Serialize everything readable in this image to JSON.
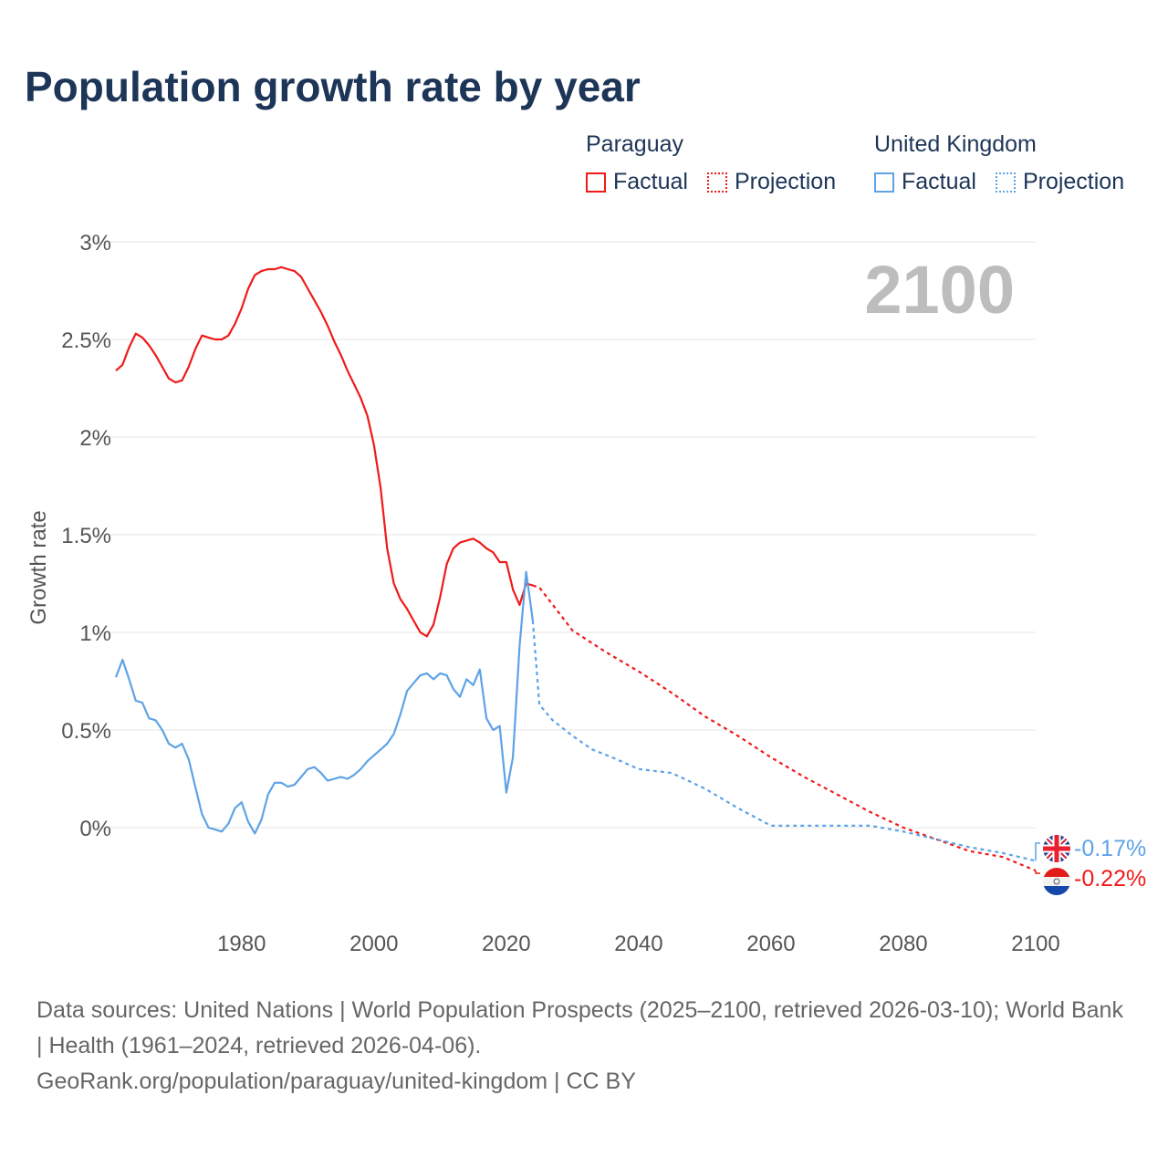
{
  "title": "Population growth rate by year",
  "legend": {
    "groups": [
      {
        "country": "Paraguay",
        "factual": "Factual",
        "projection": "Projection",
        "color": "#f01a1a"
      },
      {
        "country": "United Kingdom",
        "factual": "Factual",
        "projection": "Projection",
        "color": "#5ea3e6"
      }
    ]
  },
  "year_display": "2100",
  "footer": {
    "sources": "Data sources: United Nations | World Population Prospects (2025–2100, retrieved 2026-03-10); World Bank | Health (1961–2024, retrieved 2026-04-06).",
    "credit": "GeoRank.org/population/paraguay/united-kingdom | CC BY"
  },
  "chart_data": {
    "type": "line",
    "title": "Population growth rate by year",
    "xlabel": "",
    "ylabel": "Growth rate",
    "xlim": [
      1961,
      2100
    ],
    "ylim": [
      -0.45,
      3.0
    ],
    "yticks": [
      0,
      0.5,
      1,
      1.5,
      2,
      2.5,
      3
    ],
    "ytick_labels": [
      "0%",
      "0.5%",
      "1%",
      "1.5%",
      "2%",
      "2.5%",
      "3%"
    ],
    "xticks": [
      1980,
      2000,
      2020,
      2040,
      2060,
      2080,
      2100
    ],
    "xtick_labels": [
      "1980",
      "2000",
      "2020",
      "2040",
      "2060",
      "2080",
      "2100"
    ],
    "grid": true,
    "legend_position": "top-right",
    "series": [
      {
        "name": "Paraguay",
        "kind": "Factual",
        "color": "#f01a1a",
        "start_year": 1961,
        "values": [
          2.34,
          2.37,
          2.46,
          2.53,
          2.51,
          2.47,
          2.42,
          2.36,
          2.3,
          2.28,
          2.29,
          2.36,
          2.45,
          2.52,
          2.51,
          2.5,
          2.5,
          2.52,
          2.58,
          2.66,
          2.76,
          2.83,
          2.85,
          2.86,
          2.86,
          2.87,
          2.86,
          2.85,
          2.82,
          2.76,
          2.7,
          2.64,
          2.57,
          2.49,
          2.42,
          2.34,
          2.27,
          2.2,
          2.11,
          1.96,
          1.74,
          1.43,
          1.25,
          1.17,
          1.12,
          1.06,
          1.0,
          0.98,
          1.04,
          1.18,
          1.35,
          1.43,
          1.46,
          1.47,
          1.48,
          1.46,
          1.43,
          1.41,
          1.36,
          1.36,
          1.22,
          1.14,
          1.25,
          1.24
        ]
      },
      {
        "name": "Paraguay",
        "kind": "Projection",
        "color": "#f01a1a",
        "x": [
          2024,
          2025,
          2030,
          2035,
          2040,
          2045,
          2050,
          2055,
          2060,
          2065,
          2070,
          2075,
          2080,
          2085,
          2090,
          2095,
          2100
        ],
        "values": [
          1.24,
          1.23,
          1.01,
          0.9,
          0.8,
          0.69,
          0.57,
          0.47,
          0.36,
          0.26,
          0.17,
          0.08,
          0.0,
          -0.06,
          -0.12,
          -0.15,
          -0.22
        ]
      },
      {
        "name": "United Kingdom",
        "kind": "Factual",
        "color": "#5ea3e6",
        "start_year": 1961,
        "values": [
          0.77,
          0.86,
          0.76,
          0.65,
          0.64,
          0.56,
          0.55,
          0.5,
          0.43,
          0.41,
          0.43,
          0.35,
          0.21,
          0.07,
          0.0,
          -0.01,
          -0.02,
          0.02,
          0.1,
          0.13,
          0.03,
          -0.03,
          0.04,
          0.17,
          0.23,
          0.23,
          0.21,
          0.22,
          0.26,
          0.3,
          0.31,
          0.28,
          0.24,
          0.25,
          0.26,
          0.25,
          0.27,
          0.3,
          0.34,
          0.37,
          0.4,
          0.43,
          0.48,
          0.58,
          0.7,
          0.74,
          0.78,
          0.79,
          0.76,
          0.79,
          0.78,
          0.71,
          0.67,
          0.76,
          0.73,
          0.81,
          0.56,
          0.5,
          0.52,
          0.18,
          0.36,
          0.93,
          1.31,
          1.06
        ]
      },
      {
        "name": "United Kingdom",
        "kind": "Projection",
        "color": "#5ea3e6",
        "x": [
          2024,
          2025,
          2027,
          2030,
          2033,
          2036,
          2040,
          2045,
          2050,
          2055,
          2060,
          2065,
          2070,
          2075,
          2080,
          2085,
          2090,
          2095,
          2100
        ],
        "values": [
          1.06,
          0.63,
          0.55,
          0.47,
          0.4,
          0.36,
          0.3,
          0.28,
          0.2,
          0.1,
          0.01,
          0.01,
          0.01,
          0.01,
          -0.02,
          -0.06,
          -0.1,
          -0.13,
          -0.17
        ]
      }
    ],
    "end_labels": [
      {
        "country": "United Kingdom",
        "value": -0.17,
        "label": "-0.17%",
        "color": "#5ea3e6"
      },
      {
        "country": "Paraguay",
        "value": -0.22,
        "label": "-0.22%",
        "color": "#f01a1a"
      }
    ]
  }
}
